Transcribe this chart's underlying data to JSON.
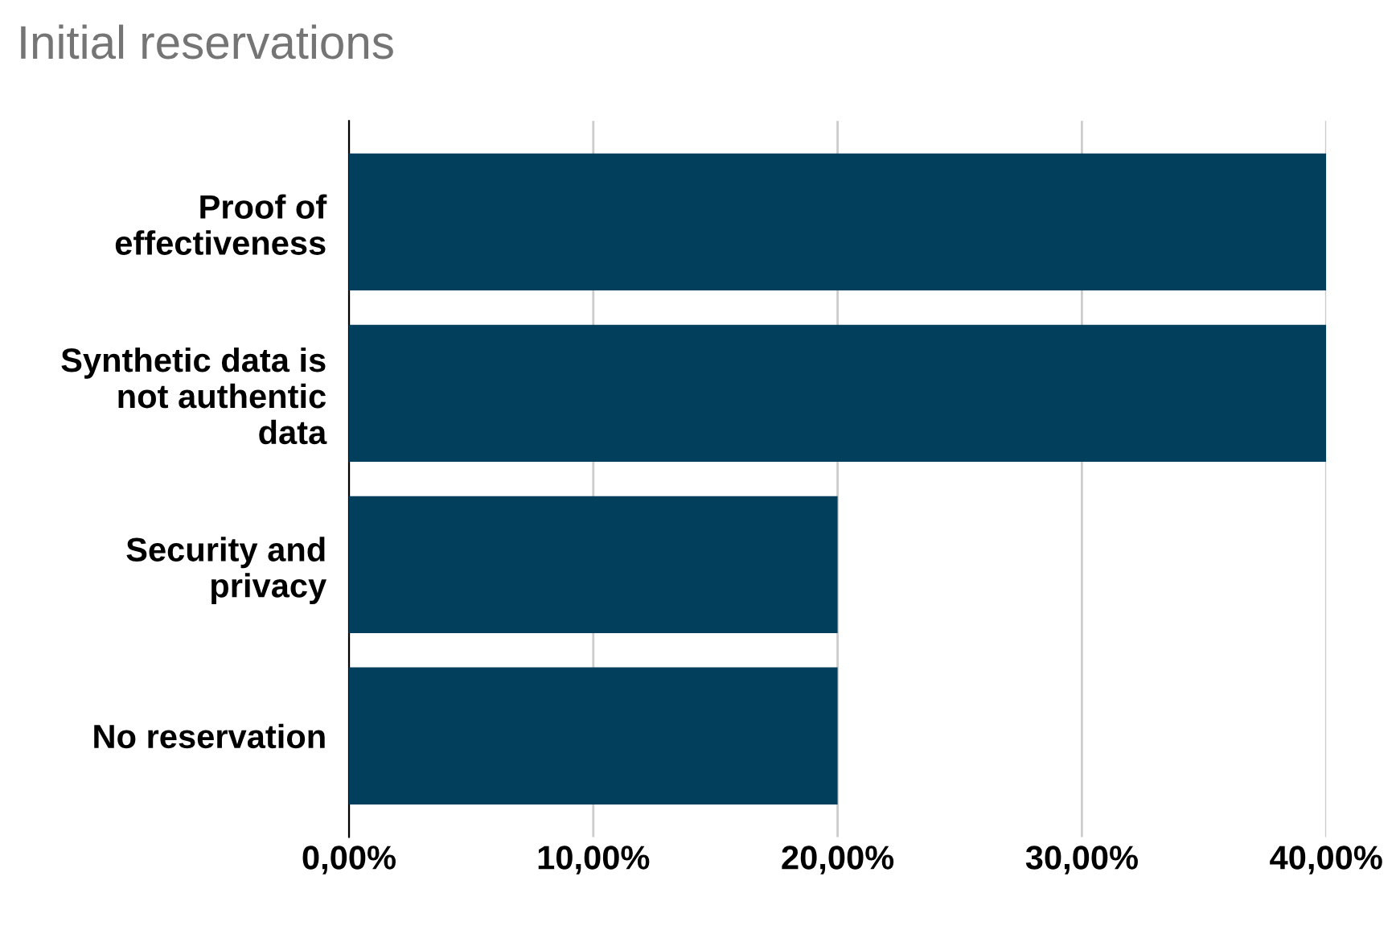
{
  "chart_data": {
    "type": "bar",
    "orientation": "horizontal",
    "title": "Initial reservations",
    "categories": [
      "Proof of\neffectiveness",
      "Synthetic data is\nnot authentic\ndata",
      "Security and\nprivacy",
      "No reservation"
    ],
    "values": [
      40,
      40,
      20,
      20
    ],
    "color": "#023f5c",
    "xlim": [
      0,
      40
    ],
    "xticks": [
      {
        "value": 0,
        "label": "0,00%"
      },
      {
        "value": 10,
        "label": "10,00%"
      },
      {
        "value": 20,
        "label": "20,00%"
      },
      {
        "value": 30,
        "label": "30,00%"
      },
      {
        "value": 40,
        "label": "40,00%"
      }
    ],
    "grid": "x",
    "legend": false
  }
}
